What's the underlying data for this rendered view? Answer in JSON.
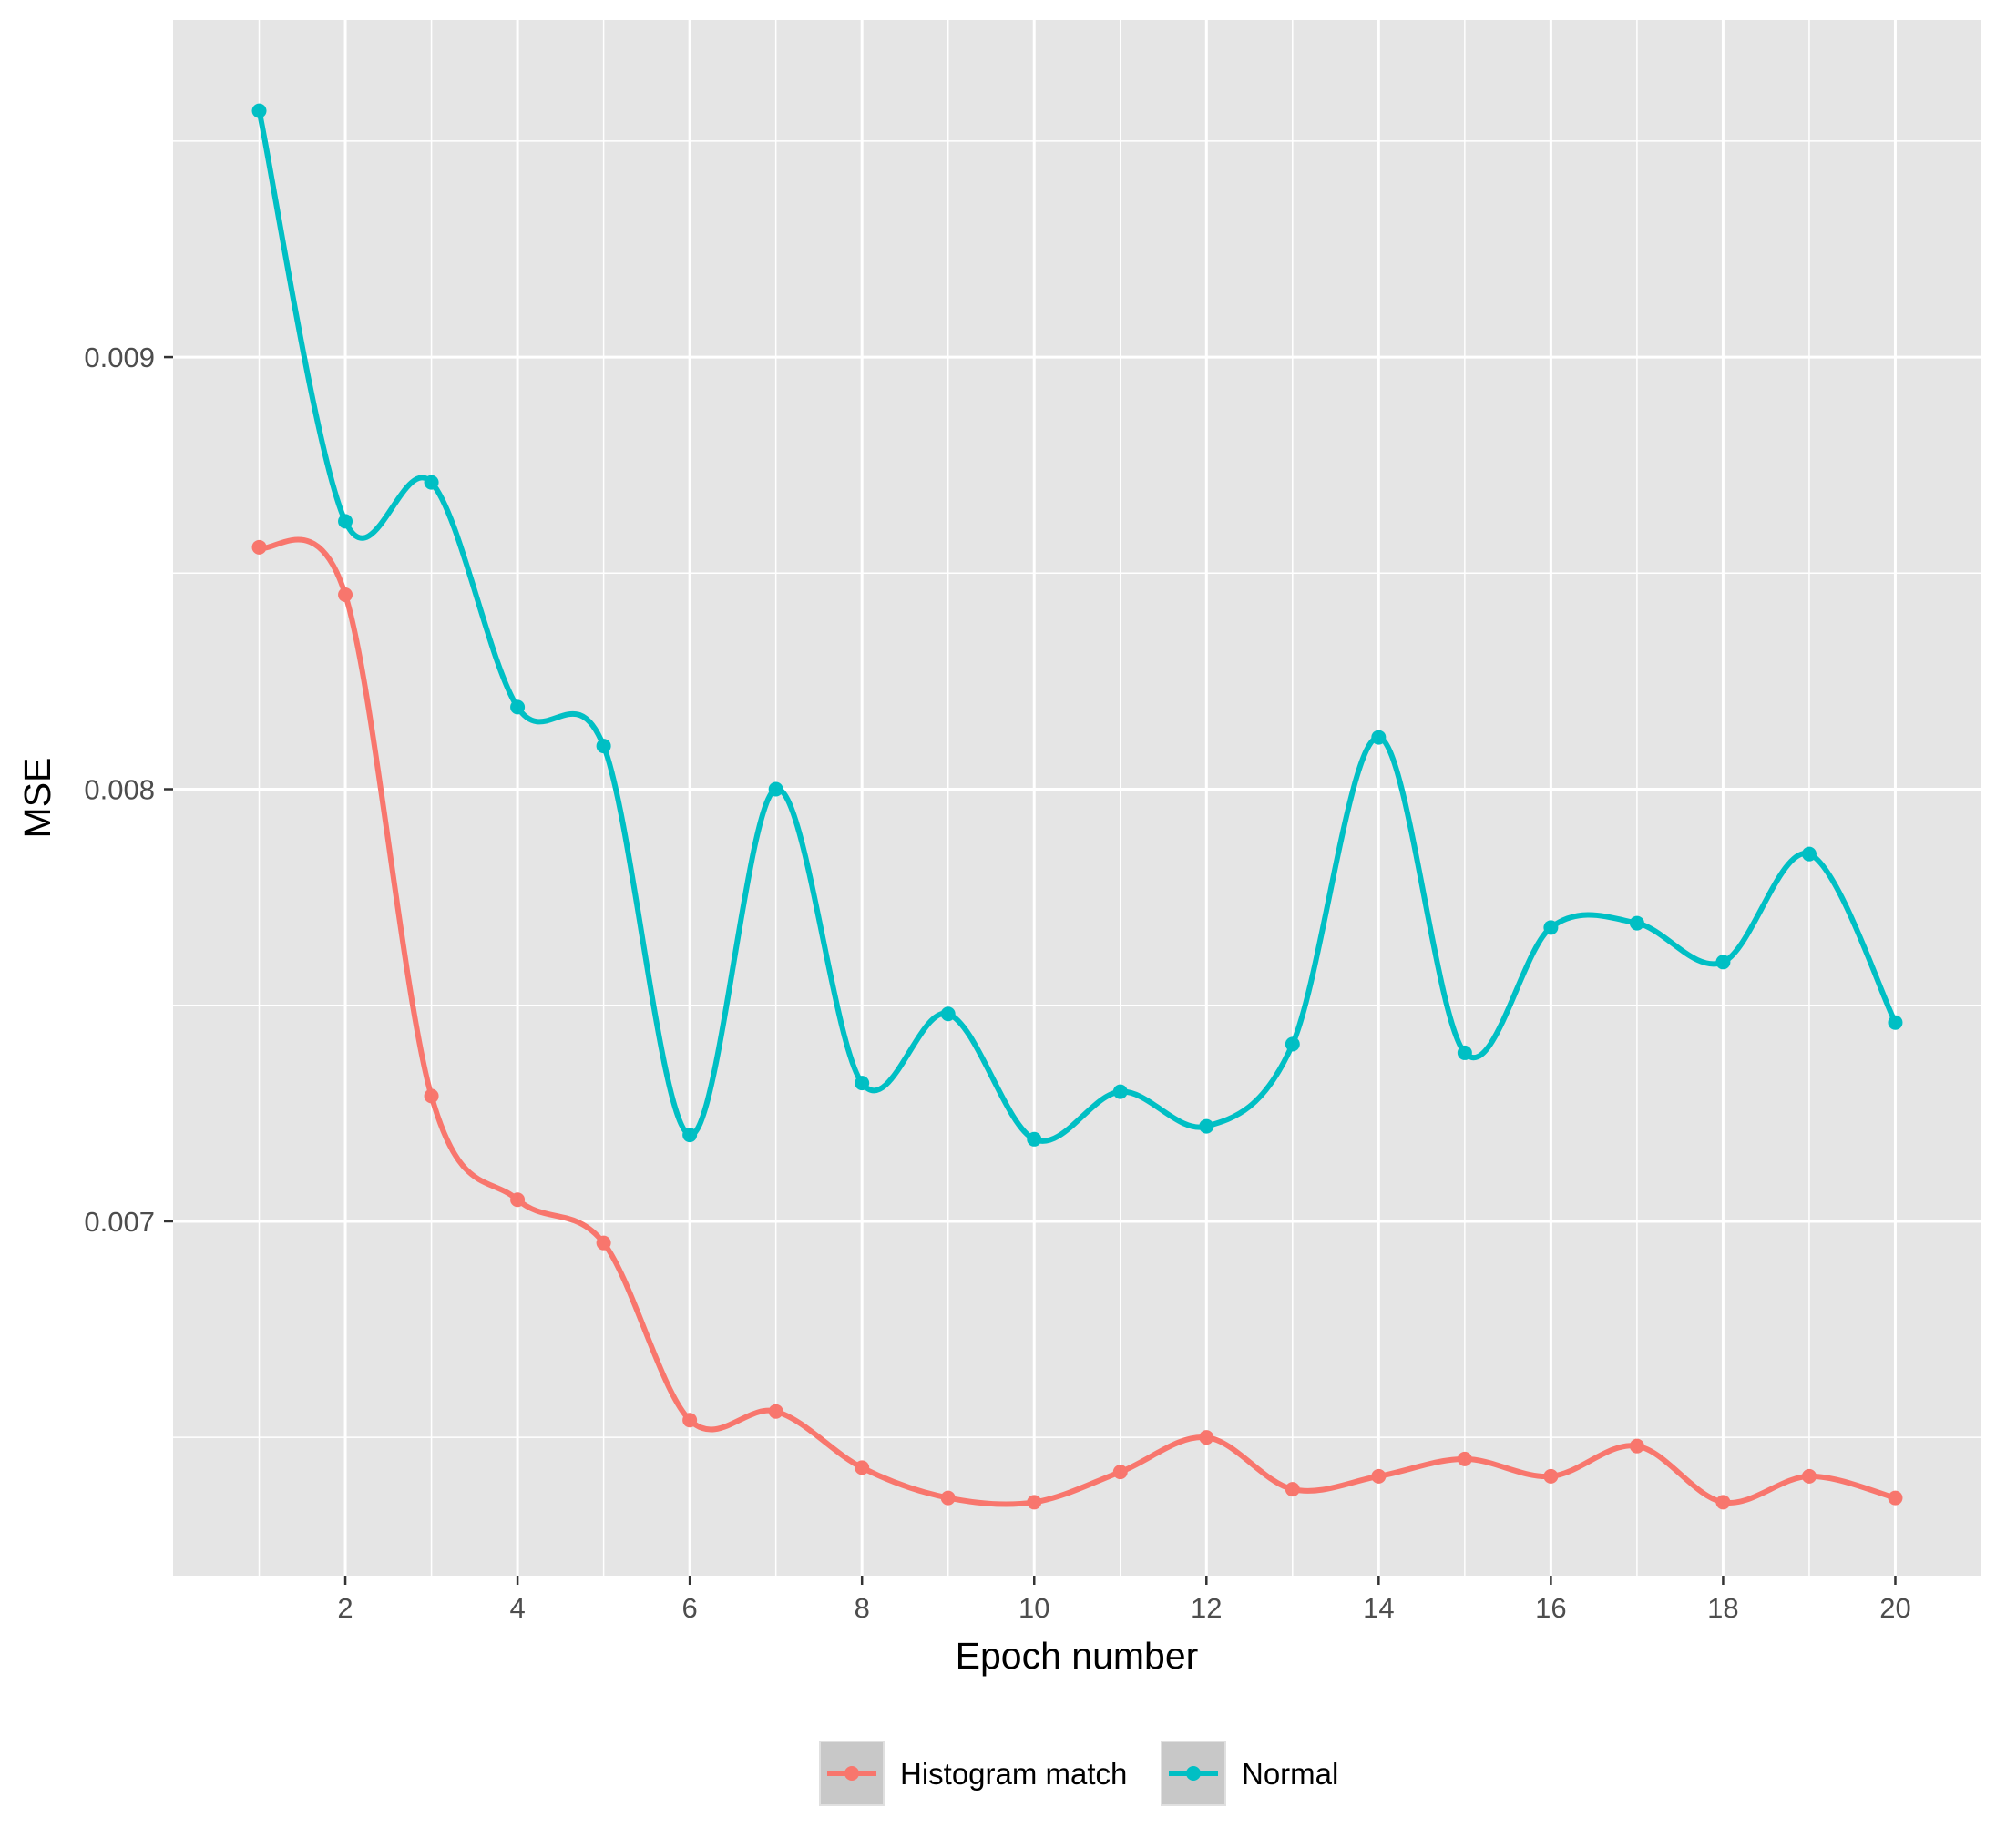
{
  "chart_data": {
    "type": "line",
    "xlabel": "Epoch number",
    "ylabel": "MSE",
    "xlim": [
      0.0,
      21.0
    ],
    "ylim": [
      0.00618,
      0.00978
    ],
    "x_ticks": [
      2,
      4,
      6,
      8,
      10,
      12,
      14,
      16,
      18,
      20
    ],
    "x_tick_labels": [
      "2",
      "4",
      "6",
      "8",
      "10",
      "12",
      "14",
      "16",
      "18",
      "20"
    ],
    "y_ticks": [
      0.007,
      0.008,
      0.009
    ],
    "y_tick_labels": [
      "0.007",
      "0.008",
      "0.009"
    ],
    "grid": true,
    "legend_position": "bottom",
    "x": [
      1,
      2,
      3,
      4,
      5,
      6,
      7,
      8,
      9,
      10,
      11,
      12,
      13,
      14,
      15,
      16,
      17,
      18,
      19,
      20
    ],
    "series": [
      {
        "name": "Histogram match",
        "color": "#F8766D",
        "values": [
          0.00856,
          0.00845,
          0.00729,
          0.00705,
          0.00695,
          0.00654,
          0.00656,
          0.00643,
          0.00636,
          0.00635,
          0.00642,
          0.0065,
          0.00638,
          0.00641,
          0.00645,
          0.00641,
          0.00648,
          0.00635,
          0.00641,
          0.00636
        ]
      },
      {
        "name": "Normal",
        "color": "#00BFC4",
        "values": [
          0.00957,
          0.00862,
          0.00871,
          0.00819,
          0.0081,
          0.0072,
          0.008,
          0.00732,
          0.00748,
          0.00719,
          0.0073,
          0.00722,
          0.00741,
          0.00812,
          0.00739,
          0.00768,
          0.00769,
          0.0076,
          0.00785,
          0.00746
        ]
      }
    ]
  }
}
